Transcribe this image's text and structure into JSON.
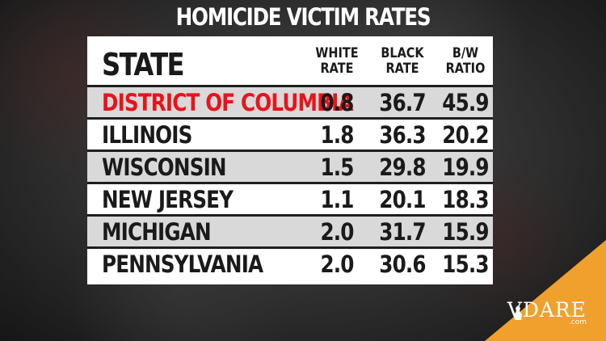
{
  "chart_data": {
    "type": "table",
    "title": "HOMICIDE VICTIM RATES",
    "columns": [
      "STATE",
      "WHITE RATE",
      "BLACK RATE",
      "B/W RATIO"
    ],
    "header": {
      "state": "STATE",
      "white_line1": "WHITE",
      "white_line2": "RATE",
      "black_line1": "BLACK",
      "black_line2": "RATE",
      "ratio_line1": "B/W",
      "ratio_line2": "RATIO"
    },
    "rows": [
      {
        "state": "DISTRICT OF COLUMBIA",
        "white_rate": "0.8",
        "black_rate": "36.7",
        "bw_ratio": "45.9"
      },
      {
        "state": "ILLINOIS",
        "white_rate": "1.8",
        "black_rate": "36.3",
        "bw_ratio": "20.2"
      },
      {
        "state": "WISCONSIN",
        "white_rate": "1.5",
        "black_rate": "29.8",
        "bw_ratio": "19.9"
      },
      {
        "state": "NEW JERSEY",
        "white_rate": "1.1",
        "black_rate": "20.1",
        "bw_ratio": "18.3"
      },
      {
        "state": "MICHIGAN",
        "white_rate": "2.0",
        "black_rate": "31.7",
        "bw_ratio": "15.9"
      },
      {
        "state": "PENNSYLVANIA",
        "white_rate": "2.0",
        "black_rate": "30.6",
        "bw_ratio": "15.3"
      }
    ],
    "highlighted_row": 0
  },
  "colors": {
    "highlight_text": "#e8141b",
    "body_text": "#1a1a1a",
    "row_shade": "#d9d9d9",
    "row_plain": "#ffffff",
    "corner_accent": "#f0a02c"
  },
  "branding": {
    "logo_text": "VDARE",
    "logo_domain": ".com",
    "logo_icon": "silhouette-mark-icon"
  }
}
